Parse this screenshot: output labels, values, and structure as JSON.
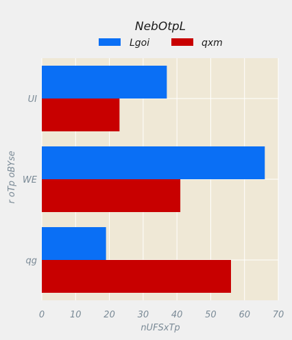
{
  "chart_data": {
    "type": "bar",
    "orientation": "horizontal",
    "legend_title": "NebOtpL",
    "legend_position": "top-center",
    "categories": [
      "UI",
      "WE",
      "qg"
    ],
    "series": [
      {
        "name": "Lgoi",
        "values": [
          37,
          66,
          19
        ],
        "color": "#0a6ff5"
      },
      {
        "name": "qxm",
        "values": [
          23,
          41,
          56
        ],
        "color": "#c80000"
      }
    ],
    "xlabel": "nUFSxTp",
    "ylabel": "r oTp oBYse",
    "xlim": [
      0,
      70
    ],
    "xticks": [
      0,
      10,
      20,
      30,
      40,
      50,
      60,
      70
    ],
    "grid": true,
    "plot_background": "#efe8d6",
    "grid_color": "#ffffff"
  }
}
